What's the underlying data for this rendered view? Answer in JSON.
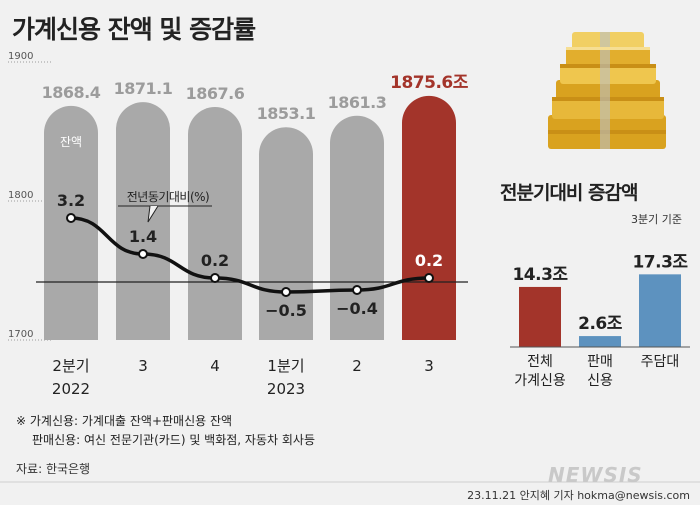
{
  "title": "가계신용 잔액 및 증감률",
  "chart_data": [
    {
      "type": "bar",
      "title": "가계신용 잔액 및 증감률",
      "categories": [
        "2분기 2022",
        "3",
        "4",
        "1분기 2023",
        "2",
        "3"
      ],
      "category_lines": [
        [
          "2분기",
          "2022"
        ],
        [
          "3",
          ""
        ],
        [
          "4",
          ""
        ],
        [
          "1분기",
          "2023"
        ],
        [
          "2",
          ""
        ],
        [
          "3",
          ""
        ]
      ],
      "balance_label": "잔액",
      "balance_values": [
        1868.4,
        1871.1,
        1867.6,
        1853.1,
        1861.3,
        1875.6
      ],
      "balance_value_labels": [
        "1868.4",
        "1871.1",
        "1867.6",
        "1853.1",
        "1861.3",
        "1875.6조"
      ],
      "yoy_label": "전년동기대비(%)",
      "yoy_values": [
        3.2,
        1.4,
        0.2,
        -0.5,
        -0.4,
        0.2
      ],
      "yoy_value_labels": [
        "3.2",
        "1.4",
        "0.2",
        "−0.5",
        "−0.4",
        "0.2"
      ],
      "y_ticks": [
        "1900",
        "1800",
        "1700"
      ],
      "ylim": [
        1700,
        1900
      ],
      "highlight_index": 5
    },
    {
      "type": "bar",
      "title": "전분기대비 증감액",
      "basis": "3분기 기준",
      "categories": [
        "전체 가계신용",
        "판매 신용",
        "주담대"
      ],
      "category_lines": [
        [
          "전체",
          "가계신용"
        ],
        [
          "판매",
          "신용"
        ],
        [
          "주담대",
          ""
        ]
      ],
      "values": [
        14.3,
        2.6,
        17.3
      ],
      "value_labels": [
        "14.3조",
        "2.6조",
        "17.3조"
      ]
    }
  ],
  "notes": [
    "※ 가계신용: 가계대출 잔액+판매신용 잔액",
    "판매신용: 여신 전문기관(카드) 및 백화점, 자동차 회사등"
  ],
  "source": "자료: 한국은행",
  "credit": "23.11.21 안지혜 기자 hokma@newsis.com",
  "logo": "NEWSIS",
  "icon": "money-stack-icon",
  "colors": {
    "bar_gray": "#a9a9a9",
    "bar_red": "#a3342a",
    "bar_blue": "#5d92bf",
    "line": "#111111",
    "red_text": "#a3342a"
  }
}
